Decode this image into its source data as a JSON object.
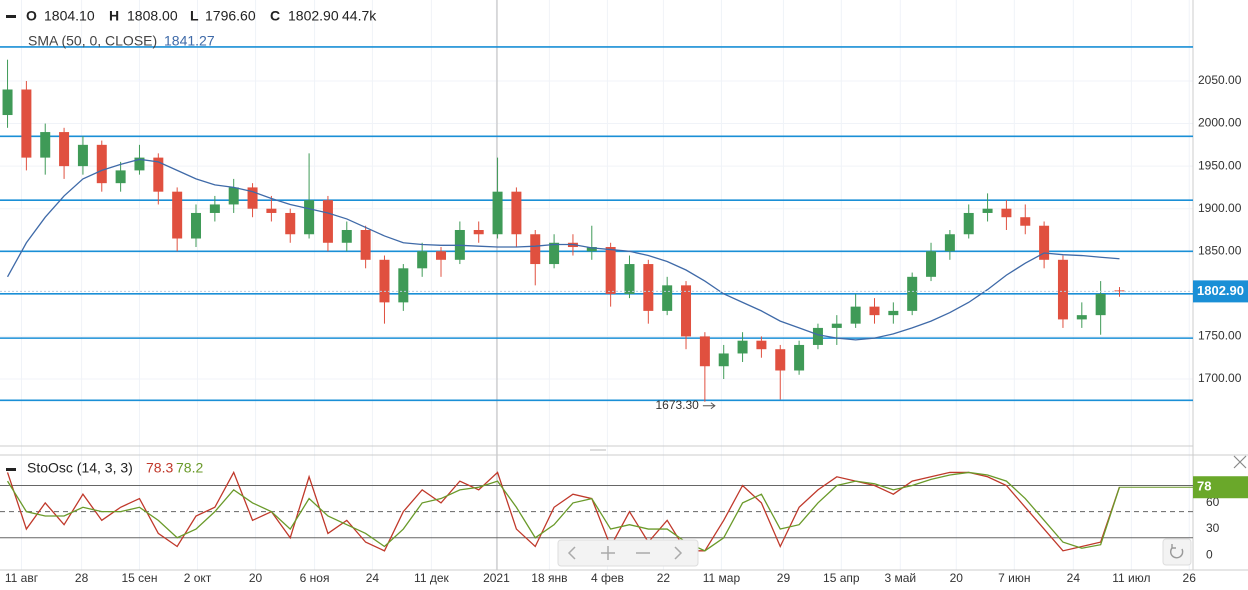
{
  "chart_data": [
    {
      "type": "candlestick",
      "legend": [
        "O",
        "1804.10",
        "H",
        "1808.00",
        "L",
        "1796.60",
        "C",
        "1802.90",
        "44.7k"
      ],
      "candles": [
        [
          2010,
          2075,
          1995,
          2040
        ],
        [
          2040,
          2050,
          1945,
          1960
        ],
        [
          1960,
          2000,
          1940,
          1990
        ],
        [
          1990,
          1995,
          1935,
          1950
        ],
        [
          1950,
          1985,
          1940,
          1975
        ],
        [
          1975,
          1980,
          1920,
          1930
        ],
        [
          1930,
          1955,
          1920,
          1945
        ],
        [
          1945,
          1975,
          1940,
          1960
        ],
        [
          1960,
          1965,
          1905,
          1920
        ],
        [
          1920,
          1925,
          1850,
          1865
        ],
        [
          1865,
          1905,
          1855,
          1895
        ],
        [
          1895,
          1915,
          1885,
          1905
        ],
        [
          1905,
          1935,
          1895,
          1925
        ],
        [
          1925,
          1930,
          1890,
          1900
        ],
        [
          1900,
          1915,
          1885,
          1895
        ],
        [
          1895,
          1900,
          1860,
          1870
        ],
        [
          1870,
          1965,
          1865,
          1910
        ],
        [
          1910,
          1915,
          1850,
          1860
        ],
        [
          1860,
          1885,
          1850,
          1875
        ],
        [
          1875,
          1880,
          1830,
          1840
        ],
        [
          1840,
          1845,
          1765,
          1790
        ],
        [
          1790,
          1835,
          1780,
          1830
        ],
        [
          1830,
          1860,
          1820,
          1850
        ],
        [
          1850,
          1855,
          1820,
          1840
        ],
        [
          1840,
          1885,
          1835,
          1875
        ],
        [
          1875,
          1885,
          1860,
          1870
        ],
        [
          1870,
          1960,
          1865,
          1920
        ],
        [
          1920,
          1925,
          1855,
          1870
        ],
        [
          1870,
          1875,
          1810,
          1835
        ],
        [
          1835,
          1870,
          1830,
          1860
        ],
        [
          1860,
          1870,
          1845,
          1855
        ],
        [
          1850,
          1880,
          1840,
          1855
        ],
        [
          1855,
          1860,
          1785,
          1800
        ],
        [
          1800,
          1845,
          1795,
          1835
        ],
        [
          1835,
          1840,
          1765,
          1780
        ],
        [
          1780,
          1820,
          1775,
          1810
        ],
        [
          1810,
          1815,
          1735,
          1750
        ],
        [
          1750,
          1755,
          1673.3,
          1715
        ],
        [
          1715,
          1740,
          1700,
          1730
        ],
        [
          1730,
          1755,
          1720,
          1745
        ],
        [
          1745,
          1750,
          1725,
          1735
        ],
        [
          1735,
          1740,
          1676,
          1710
        ],
        [
          1710,
          1745,
          1705,
          1740
        ],
        [
          1740,
          1765,
          1735,
          1760
        ],
        [
          1760,
          1775,
          1740,
          1765
        ],
        [
          1765,
          1800,
          1760,
          1785
        ],
        [
          1785,
          1795,
          1765,
          1775
        ],
        [
          1775,
          1790,
          1765,
          1780
        ],
        [
          1780,
          1825,
          1775,
          1820
        ],
        [
          1820,
          1860,
          1815,
          1850
        ],
        [
          1850,
          1875,
          1840,
          1870
        ],
        [
          1870,
          1905,
          1865,
          1895
        ],
        [
          1895,
          1918,
          1885,
          1900
        ],
        [
          1900,
          1910,
          1875,
          1890
        ],
        [
          1890,
          1905,
          1870,
          1880
        ],
        [
          1880,
          1885,
          1830,
          1840
        ],
        [
          1840,
          1845,
          1760,
          1770
        ],
        [
          1770,
          1790,
          1760,
          1775
        ],
        [
          1775,
          1815,
          1752,
          1800
        ],
        [
          1804.1,
          1808,
          1796.6,
          1802.9
        ]
      ],
      "up_color": "#3f9a57",
      "down_color": "#e0503f",
      "series": [
        {
          "name": "SMA (50, 0, CLOSE)",
          "color": "#3f6aa8",
          "values": [
            1820,
            1860,
            1890,
            1915,
            1935,
            1945,
            1952,
            1958,
            1955,
            1945,
            1935,
            1928,
            1925,
            1920,
            1912,
            1905,
            1900,
            1895,
            1888,
            1878,
            1868,
            1860,
            1858,
            1857,
            1857,
            1856,
            1855,
            1855,
            1856,
            1858,
            1858,
            1854,
            1852,
            1850,
            1845,
            1838,
            1828,
            1815,
            1800,
            1790,
            1780,
            1768,
            1760,
            1752,
            1748,
            1746,
            1748,
            1753,
            1760,
            1768,
            1778,
            1790,
            1805,
            1822,
            1836,
            1848,
            1846,
            1845,
            1843,
            1841.27
          ]
        }
      ],
      "levels": [
        2090,
        1985,
        1910,
        1850,
        1800,
        1748,
        1675
      ],
      "level_color": "#1a8fd6",
      "last_price": {
        "value": 1802.9,
        "label": "1802.90"
      },
      "annotation": {
        "value": 1673.3,
        "label": "1673.30"
      },
      "ylim": [
        1622.5,
        2145.1
      ],
      "yticks": [
        {
          "value": 1700,
          "label": "1700.00"
        },
        {
          "value": 1750,
          "label": "1750.00"
        },
        {
          "value": 1800,
          "label": "1800.00"
        },
        {
          "value": 1850,
          "label": "1850.00"
        },
        {
          "value": 1900,
          "label": "1900.00"
        },
        {
          "value": 1950,
          "label": "1950.00"
        },
        {
          "value": 2000,
          "label": "2000.00"
        },
        {
          "value": 2050,
          "label": "2050.00"
        }
      ],
      "xlim": [
        -0.4,
        62.9
      ],
      "xticks": [
        {
          "value": 0.74,
          "label": "11 авг"
        },
        {
          "value": 3.93,
          "label": "28"
        },
        {
          "value": 7.0,
          "label": "15 сен"
        },
        {
          "value": 10.08,
          "label": "2 окт"
        },
        {
          "value": 13.16,
          "label": "20"
        },
        {
          "value": 16.29,
          "label": "6 ноя"
        },
        {
          "value": 19.36,
          "label": "24"
        },
        {
          "value": 22.49,
          "label": "11 дек"
        },
        {
          "value": 25.94,
          "label": "2021"
        },
        {
          "value": 28.75,
          "label": "18 янв"
        },
        {
          "value": 31.83,
          "label": "4 фев"
        },
        {
          "value": 34.8,
          "label": "22"
        },
        {
          "value": 37.88,
          "label": "11 мар"
        },
        {
          "value": 41.17,
          "label": "29"
        },
        {
          "value": 44.24,
          "label": "15 апр"
        },
        {
          "value": 47.37,
          "label": "3 май"
        },
        {
          "value": 50.34,
          "label": "20"
        },
        {
          "value": 53.42,
          "label": "7 июн"
        },
        {
          "value": 56.55,
          "label": "24"
        },
        {
          "value": 59.63,
          "label": "11 июл"
        },
        {
          "value": 62.7,
          "label": "26"
        }
      ]
    },
    {
      "type": "line",
      "title": "StoOsc (14, 3, 3)",
      "series": [
        {
          "color": "#c0392b",
          "values": [
            95,
            30,
            60,
            35,
            70,
            40,
            55,
            65,
            25,
            10,
            45,
            55,
            95,
            40,
            50,
            20,
            90,
            25,
            40,
            15,
            5,
            50,
            75,
            60,
            85,
            75,
            95,
            30,
            10,
            55,
            70,
            65,
            10,
            50,
            15,
            40,
            5,
            5,
            40,
            80,
            60,
            10,
            55,
            75,
            90,
            85,
            80,
            70,
            85,
            90,
            95,
            95,
            90,
            80,
            55,
            30,
            5,
            10,
            15,
            78.3
          ]
        },
        {
          "color": "#6a9a2a",
          "values": [
            85,
            50,
            45,
            45,
            55,
            50,
            50,
            55,
            40,
            20,
            30,
            50,
            75,
            60,
            50,
            30,
            65,
            45,
            35,
            25,
            10,
            30,
            60,
            65,
            75,
            78,
            85,
            55,
            20,
            35,
            60,
            65,
            30,
            35,
            30,
            30,
            15,
            5,
            20,
            60,
            70,
            30,
            35,
            60,
            80,
            85,
            82,
            75,
            80,
            87,
            92,
            95,
            92,
            85,
            65,
            40,
            15,
            8,
            12,
            78.2
          ]
        }
      ],
      "levels": [
        20,
        50,
        80
      ],
      "last_label": {
        "value": 78,
        "label": "78"
      },
      "ylim": [
        -17,
        115
      ],
      "yticks": [
        0,
        30,
        60
      ]
    }
  ]
}
